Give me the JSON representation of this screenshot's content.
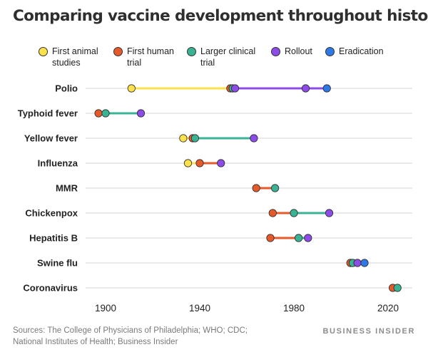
{
  "chart_data": {
    "type": "dot-range",
    "title": "Comparing vaccine development throughout history",
    "xlim": [
      1890,
      2030
    ],
    "x_ticks": [
      "1900",
      "1940",
      "1980",
      "2020"
    ],
    "x_tick_values": [
      1900,
      1940,
      1980,
      2020
    ],
    "grid": "horizontal",
    "legend_position": "top",
    "stages": [
      {
        "key": "animal",
        "name": "First animal\nstudies",
        "color": "#fce14b"
      },
      {
        "key": "human",
        "name": "First human\ntrial",
        "color": "#e55a2b"
      },
      {
        "key": "clinical",
        "name": "Larger clinical\ntrial",
        "color": "#3ab394"
      },
      {
        "key": "rollout",
        "name": "Rollout",
        "color": "#8d4be8"
      },
      {
        "key": "eradication",
        "name": "Eradication",
        "color": "#2e79e6"
      }
    ],
    "vaccines": [
      {
        "name": "Polio",
        "points": {
          "animal": 1911,
          "human": 1953,
          "clinical": 1954,
          "rollout": [
            1955,
            1985
          ],
          "eradication": 1994
        }
      },
      {
        "name": "Typhoid fever",
        "points": {
          "human": 1897,
          "clinical": 1900,
          "rollout": 1915
        }
      },
      {
        "name": "Yellow fever",
        "points": {
          "animal": 1933,
          "human": 1937,
          "clinical": 1938,
          "rollout": 1963
        }
      },
      {
        "name": "Influenza",
        "points": {
          "animal": 1935,
          "human": 1940,
          "rollout": 1949
        }
      },
      {
        "name": "MMR",
        "points": {
          "human": 1964,
          "clinical": 1972
        }
      },
      {
        "name": "Chickenpox",
        "points": {
          "human": 1971,
          "clinical": 1980,
          "rollout": 1995
        }
      },
      {
        "name": "Hepatitis B",
        "points": {
          "human": 1970,
          "clinical": 1982,
          "rollout": 1986
        }
      },
      {
        "name": "Swine flu",
        "points": {
          "human": 2004,
          "clinical": 2005,
          "rollout": 2007,
          "eradication": 2010
        }
      },
      {
        "name": "Coronavirus",
        "points": {
          "human": 2022,
          "clinical": 2024
        }
      }
    ]
  },
  "footer": {
    "sources": "Sources: The College of Physicians of Philadelphia; WHO; CDC; National Institutes of Health; Business Insider",
    "brand": "BUSINESS INSIDER"
  }
}
